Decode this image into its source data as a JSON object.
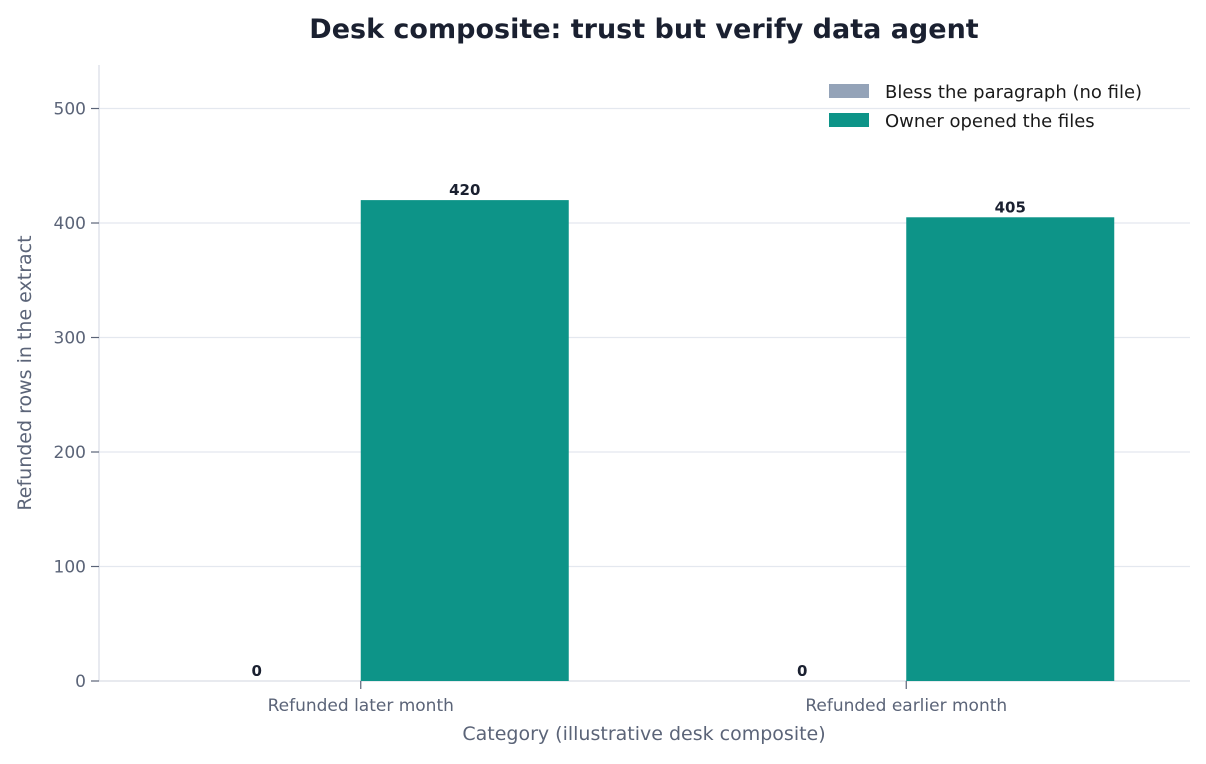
{
  "chart_data": {
    "type": "bar",
    "title": "Desk composite: trust but verify data agent",
    "xlabel": "Category (illustrative desk composite)",
    "ylabel": "Refunded rows in the extract",
    "categories": [
      "Refunded later month",
      "Refunded earlier month"
    ],
    "series": [
      {
        "name": "Bless the paragraph (no file)",
        "values": [
          0,
          0
        ],
        "color": "#94a3b8"
      },
      {
        "name": "Owner opened the files",
        "values": [
          420,
          405
        ],
        "color": "#0d9488"
      }
    ],
    "ylim": [
      0,
      538
    ],
    "yticks": [
      0,
      100,
      200,
      300,
      400,
      500
    ],
    "grid": true,
    "legend_position": "top-right",
    "colors": {
      "axis_text": "#5b6478",
      "title_text": "#1a2030",
      "grid": "#e4e8ef",
      "spine": "#d9dde5"
    }
  }
}
